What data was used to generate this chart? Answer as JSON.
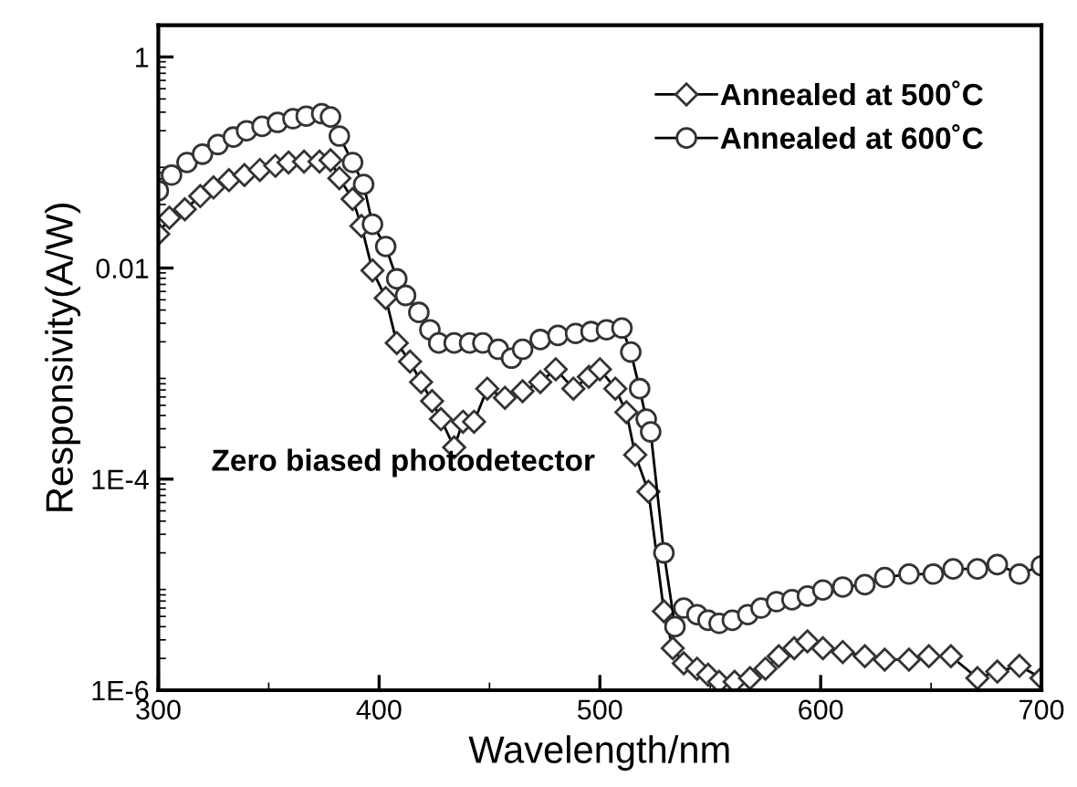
{
  "chart_data": {
    "type": "line",
    "xlabel": "Wavelength/nm",
    "ylabel": "Responsivity(A/W)",
    "xlim": [
      300,
      700
    ],
    "xticks": [
      300,
      400,
      500,
      600,
      700
    ],
    "ylim": [
      1e-06,
      2
    ],
    "yticks": [
      1,
      0.01,
      {
        "value": 0.0001,
        "label": "1E-4"
      },
      {
        "value": 1e-06,
        "label": "1E-6"
      }
    ],
    "log": "y",
    "grid": false,
    "legend": "top right",
    "line_style": "solid",
    "annotations": [
      "Zero biased photodetector"
    ],
    "series": [
      {
        "name": "Annealed at 500˚C",
        "color": "#333333",
        "marker": "diamond",
        "x": [
          300,
          305,
          312,
          319,
          325,
          332,
          339,
          346,
          353,
          359,
          366,
          373,
          378,
          382,
          388,
          392,
          397,
          403,
          408,
          414,
          419,
          424,
          428,
          434,
          438,
          443,
          449,
          457,
          465,
          473,
          480,
          488,
          495,
          500,
          507,
          512,
          516,
          522,
          529,
          533,
          538,
          544,
          549,
          554,
          561,
          568,
          575,
          581,
          588,
          594,
          601,
          610,
          620,
          629,
          640,
          649,
          659,
          671,
          680,
          690,
          700
        ],
        "values": [
          0.021,
          0.03,
          0.036,
          0.048,
          0.058,
          0.068,
          0.076,
          0.085,
          0.093,
          0.1,
          0.102,
          0.102,
          0.105,
          0.071,
          0.045,
          0.025,
          0.0095,
          0.0052,
          0.00195,
          0.0013,
          0.00083,
          0.00055,
          0.00037,
          0.0002,
          0.00035,
          0.00035,
          0.00072,
          0.00059,
          0.00068,
          0.00083,
          0.0011,
          0.00072,
          0.00093,
          0.0011,
          0.00072,
          0.00043,
          0.00017,
          7.6e-05,
          5.6e-06,
          2.5e-06,
          1.8e-06,
          1.6e-06,
          1.4e-06,
          1.2e-06,
          1.2e-06,
          1.3e-06,
          1.6e-06,
          2.1e-06,
          2.5e-06,
          2.9e-06,
          2.5e-06,
          2.3e-06,
          2.1e-06,
          1.95e-06,
          1.95e-06,
          2.1e-06,
          2.1e-06,
          1.3e-06,
          1.5e-06,
          1.7e-06,
          1.3e-06
        ]
      },
      {
        "name": "Annealed at 600˚C",
        "color": "#333333",
        "marker": "circle",
        "x": [
          300,
          306,
          313,
          320,
          327,
          334,
          340,
          347,
          354,
          361,
          367,
          374,
          378,
          382,
          388,
          393,
          397,
          403,
          408,
          412,
          418,
          423,
          427,
          434,
          441,
          447,
          454,
          460,
          465,
          473,
          481,
          489,
          496,
          503,
          510,
          514,
          518,
          521,
          523,
          529,
          534,
          538,
          544,
          549,
          554,
          560,
          567,
          573,
          580,
          587,
          594,
          601,
          610,
          620,
          629,
          640,
          651,
          660,
          671,
          680,
          690,
          700
        ],
        "values": [
          0.054,
          0.076,
          0.1,
          0.12,
          0.148,
          0.174,
          0.2,
          0.22,
          0.24,
          0.26,
          0.275,
          0.29,
          0.27,
          0.178,
          0.1,
          0.062,
          0.026,
          0.016,
          0.0079,
          0.0055,
          0.0038,
          0.0026,
          0.00195,
          0.00195,
          0.00195,
          0.00195,
          0.0017,
          0.0014,
          0.0017,
          0.0021,
          0.0023,
          0.0024,
          0.0025,
          0.0026,
          0.0027,
          0.0016,
          0.00072,
          0.00037,
          0.00028,
          2e-05,
          4e-06,
          6e-06,
          5.2e-06,
          4.6e-06,
          4.3e-06,
          4.6e-06,
          5.2e-06,
          6e-06,
          6.9e-06,
          7.2e-06,
          7.8e-06,
          8.9e-06,
          9.5e-06,
          1e-05,
          1.17e-05,
          1.26e-05,
          1.26e-05,
          1.41e-05,
          1.41e-05,
          1.55e-05,
          1.26e-05,
          1.51e-05
        ]
      }
    ]
  }
}
